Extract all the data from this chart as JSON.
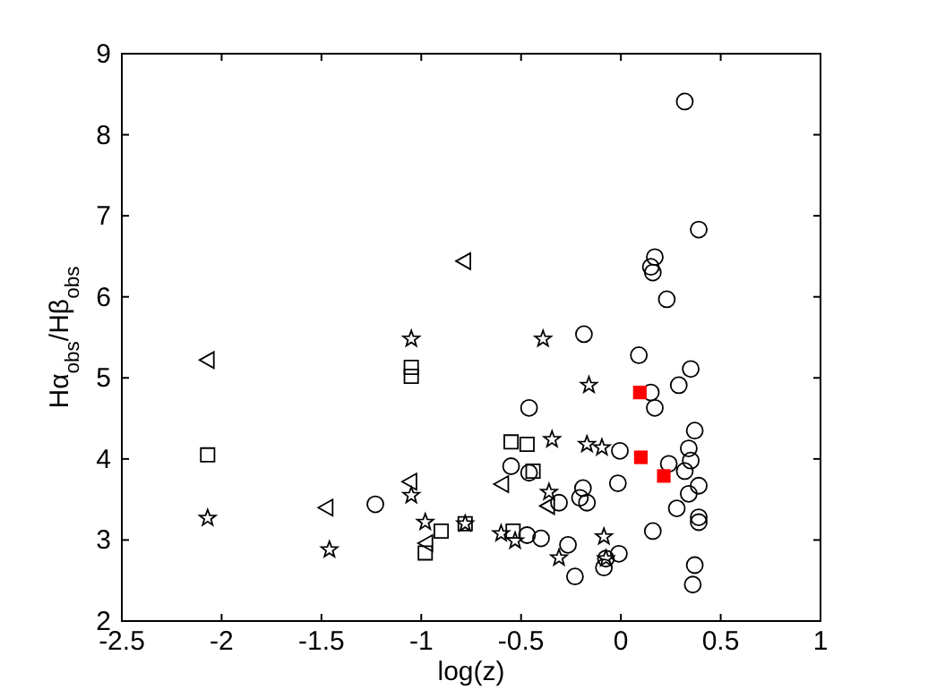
{
  "chart_data": {
    "type": "scatter",
    "xlabel": "log(z)",
    "ylabel": "Hα$_{obs}$/Hβ$_{obs}$",
    "xlim": [
      -2.5,
      1
    ],
    "ylim": [
      2,
      9
    ],
    "xticks": [
      -2.5,
      -2,
      -1.5,
      -1,
      -0.5,
      0,
      0.5,
      1
    ],
    "yticks": [
      2,
      3,
      4,
      5,
      6,
      7,
      8,
      9
    ],
    "grid": false,
    "series": [
      {
        "marker": "circle",
        "color": "#000000",
        "x": [
          -1.23,
          -0.185,
          0.09,
          0.35,
          0.29,
          0.15,
          0.17,
          -0.46,
          0.37,
          -0.005,
          0.34,
          0.35,
          0.24,
          0.32,
          -0.55,
          -0.46,
          -0.015,
          0.39,
          -0.19,
          -0.205,
          -0.17,
          -0.31,
          0.34,
          0.28,
          0.39,
          0.39,
          -0.47,
          -0.4,
          0.16,
          -0.265,
          -0.075,
          -0.01,
          -0.085,
          -0.23,
          0.37,
          0.36,
          0.32,
          0.39,
          0.17,
          0.15,
          0.16,
          0.23
        ],
        "values": [
          3.44,
          5.54,
          5.28,
          5.11,
          4.91,
          4.82,
          4.63,
          4.63,
          4.35,
          4.1,
          4.13,
          3.98,
          3.94,
          3.85,
          3.91,
          3.83,
          3.7,
          3.67,
          3.64,
          3.52,
          3.46,
          3.46,
          3.57,
          3.39,
          3.28,
          3.22,
          3.06,
          3.02,
          3.11,
          2.94,
          2.77,
          2.83,
          2.66,
          2.55,
          2.69,
          2.45,
          8.41,
          6.83,
          6.49,
          6.37,
          6.3,
          5.97
        ]
      },
      {
        "marker": "star",
        "color": "#000000",
        "x": [
          -2.07,
          -1.46,
          -1.05,
          -1.05,
          -0.98,
          -0.78,
          -0.39,
          -0.16,
          -0.345,
          -0.17,
          -0.095,
          -0.36,
          -0.6,
          -0.53,
          -0.085,
          -0.31,
          -0.075
        ],
        "values": [
          3.27,
          2.88,
          5.48,
          3.55,
          3.22,
          3.2,
          5.48,
          4.91,
          4.24,
          4.18,
          4.14,
          3.59,
          3.08,
          2.99,
          3.04,
          2.78,
          2.77
        ]
      },
      {
        "marker": "square",
        "color": "#000000",
        "x": [
          -2.07,
          -1.05,
          -1.05,
          -0.98,
          -0.9,
          -0.78,
          -0.55,
          -0.47,
          -0.44,
          -0.54
        ],
        "values": [
          4.05,
          5.13,
          5.02,
          2.84,
          3.11,
          3.2,
          4.21,
          4.18,
          3.85,
          3.11
        ]
      },
      {
        "marker": "triangle",
        "color": "#000000",
        "x": [
          -2.075,
          -1.48,
          -1.06,
          -0.98,
          -0.79,
          -0.6,
          -0.37
        ],
        "values": [
          5.22,
          3.4,
          3.72,
          2.96,
          6.44,
          3.69,
          3.42
        ]
      },
      {
        "marker": "square",
        "color": "#ff0000",
        "x": [
          0.095,
          0.1,
          0.215
        ],
        "values": [
          4.82,
          4.02,
          3.79
        ]
      }
    ]
  }
}
